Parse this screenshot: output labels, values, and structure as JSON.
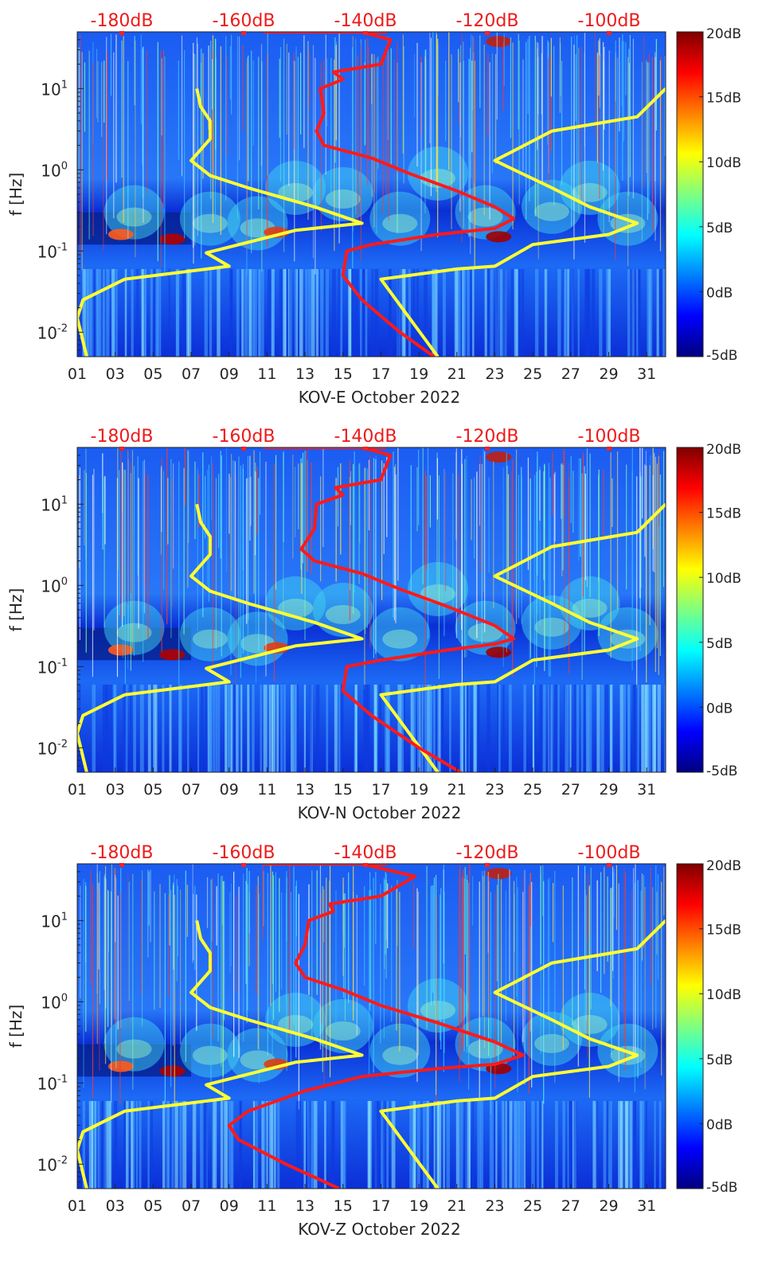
{
  "chart_data": [
    {
      "type": "heatmap",
      "title": "",
      "xlabel": "KOV-E October 2022",
      "ylabel": "f [Hz]",
      "x_ticks": [
        "01",
        "03",
        "05",
        "07",
        "09",
        "11",
        "13",
        "15",
        "17",
        "19",
        "21",
        "23",
        "25",
        "27",
        "29",
        "31"
      ],
      "xlim": [
        1,
        32
      ],
      "ylim_hz": [
        0.005,
        50
      ],
      "y_ticks": [
        "10^-2",
        "10^-1",
        "10^0",
        "10^1"
      ],
      "top_axis_labels": [
        "-180dB",
        "-160dB",
        "-140dB",
        "-120dB",
        "-100dB"
      ],
      "colorbar": {
        "min": -5,
        "max": 20,
        "ticks": [
          "20dB",
          "15dB",
          "10dB",
          "5dB",
          "0dB",
          "-5dB"
        ]
      },
      "series": [
        {
          "name": "noise model low (yellow)",
          "color": "#ffff33",
          "points": [
            [
              1.5,
              0.005
            ],
            [
              1,
              0.015
            ],
            [
              1.3,
              0.025
            ],
            [
              3.5,
              0.045
            ],
            [
              9,
              0.065
            ],
            [
              7.8,
              0.095
            ],
            [
              12.5,
              0.18
            ],
            [
              16,
              0.22
            ],
            [
              13.5,
              0.35
            ],
            [
              10,
              0.6
            ],
            [
              8,
              0.85
            ],
            [
              7,
              1.3
            ],
            [
              8,
              2.4
            ],
            [
              8,
              4
            ],
            [
              7.5,
              6
            ],
            [
              7.3,
              10
            ]
          ]
        },
        {
          "name": "noise model high (yellow)",
          "color": "#ffff33",
          "points": [
            [
              20,
              0.005
            ],
            [
              17,
              0.045
            ],
            [
              21,
              0.06
            ],
            [
              23,
              0.065
            ],
            [
              25,
              0.12
            ],
            [
              29,
              0.16
            ],
            [
              30.5,
              0.22
            ],
            [
              28,
              0.35
            ],
            [
              26,
              0.6
            ],
            [
              23,
              1.3
            ],
            [
              26,
              3
            ],
            [
              30.5,
              4.5
            ],
            [
              32,
              10
            ]
          ]
        },
        {
          "name": "median PSD (red)",
          "color": "#ff1a1a",
          "points": [
            [
              19.8,
              0.005
            ],
            [
              18,
              0.01
            ],
            [
              16,
              0.025
            ],
            [
              15,
              0.05
            ],
            [
              15.2,
              0.1
            ],
            [
              16.5,
              0.12
            ],
            [
              20,
              0.16
            ],
            [
              23,
              0.19
            ],
            [
              24,
              0.25
            ],
            [
              23,
              0.35
            ],
            [
              21,
              0.55
            ],
            [
              18.5,
              0.9
            ],
            [
              16.5,
              1.4
            ],
            [
              14,
              2
            ],
            [
              13.6,
              3
            ],
            [
              14,
              5
            ],
            [
              13.8,
              10
            ],
            [
              15,
              13
            ],
            [
              14.5,
              16
            ],
            [
              17,
              20
            ],
            [
              17.5,
              40
            ],
            [
              16,
              50
            ]
          ]
        }
      ]
    },
    {
      "type": "heatmap",
      "title": "",
      "xlabel": "KOV-N October 2022",
      "ylabel": "f [Hz]",
      "x_ticks": [
        "01",
        "03",
        "05",
        "07",
        "09",
        "11",
        "13",
        "15",
        "17",
        "19",
        "21",
        "23",
        "25",
        "27",
        "29",
        "31"
      ],
      "xlim": [
        1,
        32
      ],
      "ylim_hz": [
        0.005,
        50
      ],
      "y_ticks": [
        "10^-2",
        "10^-1",
        "10^0",
        "10^1"
      ],
      "top_axis_labels": [
        "-180dB",
        "-160dB",
        "-140dB",
        "-120dB",
        "-100dB"
      ],
      "colorbar": {
        "min": -5,
        "max": 20,
        "ticks": [
          "20dB",
          "15dB",
          "10dB",
          "5dB",
          "0dB",
          "-5dB"
        ]
      },
      "series": [
        {
          "name": "noise model low (yellow)",
          "color": "#ffff33",
          "points": [
            [
              1.5,
              0.005
            ],
            [
              1,
              0.015
            ],
            [
              1.3,
              0.025
            ],
            [
              3.5,
              0.045
            ],
            [
              9,
              0.065
            ],
            [
              7.8,
              0.095
            ],
            [
              12.5,
              0.18
            ],
            [
              16,
              0.22
            ],
            [
              13.5,
              0.35
            ],
            [
              10,
              0.6
            ],
            [
              8,
              0.85
            ],
            [
              7,
              1.3
            ],
            [
              8,
              2.4
            ],
            [
              8,
              4
            ],
            [
              7.5,
              6
            ],
            [
              7.3,
              10
            ]
          ]
        },
        {
          "name": "noise model high (yellow)",
          "color": "#ffff33",
          "points": [
            [
              20,
              0.005
            ],
            [
              17,
              0.045
            ],
            [
              21,
              0.06
            ],
            [
              23,
              0.065
            ],
            [
              25,
              0.12
            ],
            [
              29,
              0.16
            ],
            [
              30.5,
              0.22
            ],
            [
              28,
              0.35
            ],
            [
              26,
              0.6
            ],
            [
              23,
              1.3
            ],
            [
              26,
              3
            ],
            [
              30.5,
              4.5
            ],
            [
              32,
              10
            ]
          ]
        },
        {
          "name": "median PSD (red)",
          "color": "#ff1a1a",
          "points": [
            [
              21.2,
              0.005
            ],
            [
              19,
              0.01
            ],
            [
              16.5,
              0.025
            ],
            [
              15,
              0.05
            ],
            [
              15.2,
              0.1
            ],
            [
              17,
              0.12
            ],
            [
              20.5,
              0.16
            ],
            [
              23,
              0.19
            ],
            [
              24,
              0.22
            ],
            [
              23,
              0.32
            ],
            [
              20.5,
              0.55
            ],
            [
              18,
              0.9
            ],
            [
              16,
              1.4
            ],
            [
              13.5,
              2
            ],
            [
              12.8,
              2.8
            ],
            [
              13.5,
              5
            ],
            [
              13.6,
              10
            ],
            [
              15,
              13
            ],
            [
              14.6,
              16
            ],
            [
              17,
              20
            ],
            [
              17.5,
              40
            ],
            [
              16,
              50
            ]
          ]
        }
      ]
    },
    {
      "type": "heatmap",
      "title": "",
      "xlabel": "KOV-Z October 2022",
      "ylabel": "f [Hz]",
      "x_ticks": [
        "01",
        "03",
        "05",
        "07",
        "09",
        "11",
        "13",
        "15",
        "17",
        "19",
        "21",
        "23",
        "25",
        "27",
        "29",
        "31"
      ],
      "xlim": [
        1,
        32
      ],
      "ylim_hz": [
        0.005,
        50
      ],
      "y_ticks": [
        "10^-2",
        "10^-1",
        "10^0",
        "10^1"
      ],
      "top_axis_labels": [
        "-180dB",
        "-160dB",
        "-140dB",
        "-120dB",
        "-100dB"
      ],
      "colorbar": {
        "min": -5,
        "max": 20,
        "ticks": [
          "20dB",
          "15dB",
          "10dB",
          "5dB",
          "0dB",
          "-5dB"
        ]
      },
      "series": [
        {
          "name": "noise model low (yellow)",
          "color": "#ffff33",
          "points": [
            [
              1.5,
              0.005
            ],
            [
              1,
              0.015
            ],
            [
              1.3,
              0.025
            ],
            [
              3.5,
              0.045
            ],
            [
              9,
              0.065
            ],
            [
              7.8,
              0.095
            ],
            [
              12.5,
              0.18
            ],
            [
              16,
              0.22
            ],
            [
              13.5,
              0.35
            ],
            [
              10,
              0.6
            ],
            [
              8,
              0.85
            ],
            [
              7,
              1.3
            ],
            [
              8,
              2.4
            ],
            [
              8,
              4
            ],
            [
              7.5,
              6
            ],
            [
              7.3,
              10
            ]
          ]
        },
        {
          "name": "noise model high (yellow)",
          "color": "#ffff33",
          "points": [
            [
              20,
              0.005
            ],
            [
              17,
              0.045
            ],
            [
              21,
              0.06
            ],
            [
              23,
              0.065
            ],
            [
              25,
              0.12
            ],
            [
              29,
              0.16
            ],
            [
              30.5,
              0.22
            ],
            [
              28,
              0.35
            ],
            [
              26,
              0.6
            ],
            [
              23,
              1.3
            ],
            [
              26,
              3
            ],
            [
              30.5,
              4.5
            ],
            [
              32,
              10
            ]
          ]
        },
        {
          "name": "median PSD (red)",
          "color": "#ff1a1a",
          "points": [
            [
              14.8,
              0.005
            ],
            [
              12,
              0.01
            ],
            [
              9.5,
              0.02
            ],
            [
              9,
              0.03
            ],
            [
              10,
              0.045
            ],
            [
              13,
              0.08
            ],
            [
              16,
              0.12
            ],
            [
              20,
              0.15
            ],
            [
              23,
              0.17
            ],
            [
              24.5,
              0.22
            ],
            [
              23,
              0.32
            ],
            [
              20,
              0.55
            ],
            [
              17,
              0.9
            ],
            [
              15,
              1.4
            ],
            [
              13,
              2
            ],
            [
              12.5,
              3
            ],
            [
              13,
              5
            ],
            [
              13.2,
              10
            ],
            [
              14.5,
              13
            ],
            [
              14.3,
              16
            ],
            [
              17,
              20
            ],
            [
              18.8,
              35
            ],
            [
              16,
              50
            ]
          ]
        }
      ]
    }
  ]
}
